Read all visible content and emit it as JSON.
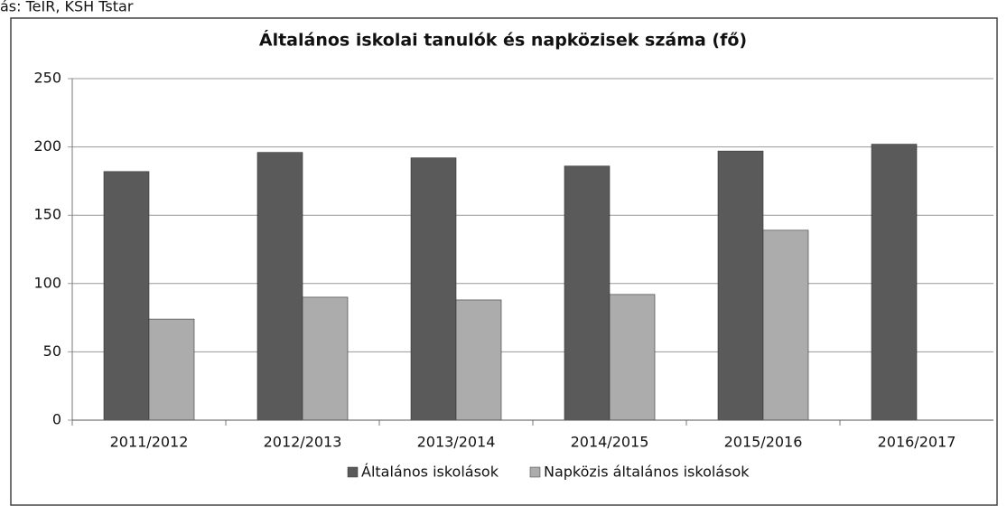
{
  "source": "ás: TeIR, KSH Tstar",
  "chart_data": {
    "type": "bar",
    "title": "Általános iskolai tanulók és napközisek száma (fő)",
    "categories": [
      "2011/2012",
      "2012/2013",
      "2013/2014",
      "2014/2015",
      "2015/2016",
      "2016/2017"
    ],
    "series": [
      {
        "name": "Általános iskolások",
        "color": "#5a5a5a",
        "values": [
          182,
          196,
          192,
          186,
          197,
          202
        ]
      },
      {
        "name": "Napközis általános iskolások",
        "color": "#acacac",
        "values": [
          74,
          90,
          88,
          92,
          139,
          null
        ]
      }
    ],
    "ylim": [
      0,
      250
    ],
    "yticks": [
      0,
      50,
      100,
      150,
      200,
      250
    ],
    "grid": true,
    "legend": "bottom"
  }
}
